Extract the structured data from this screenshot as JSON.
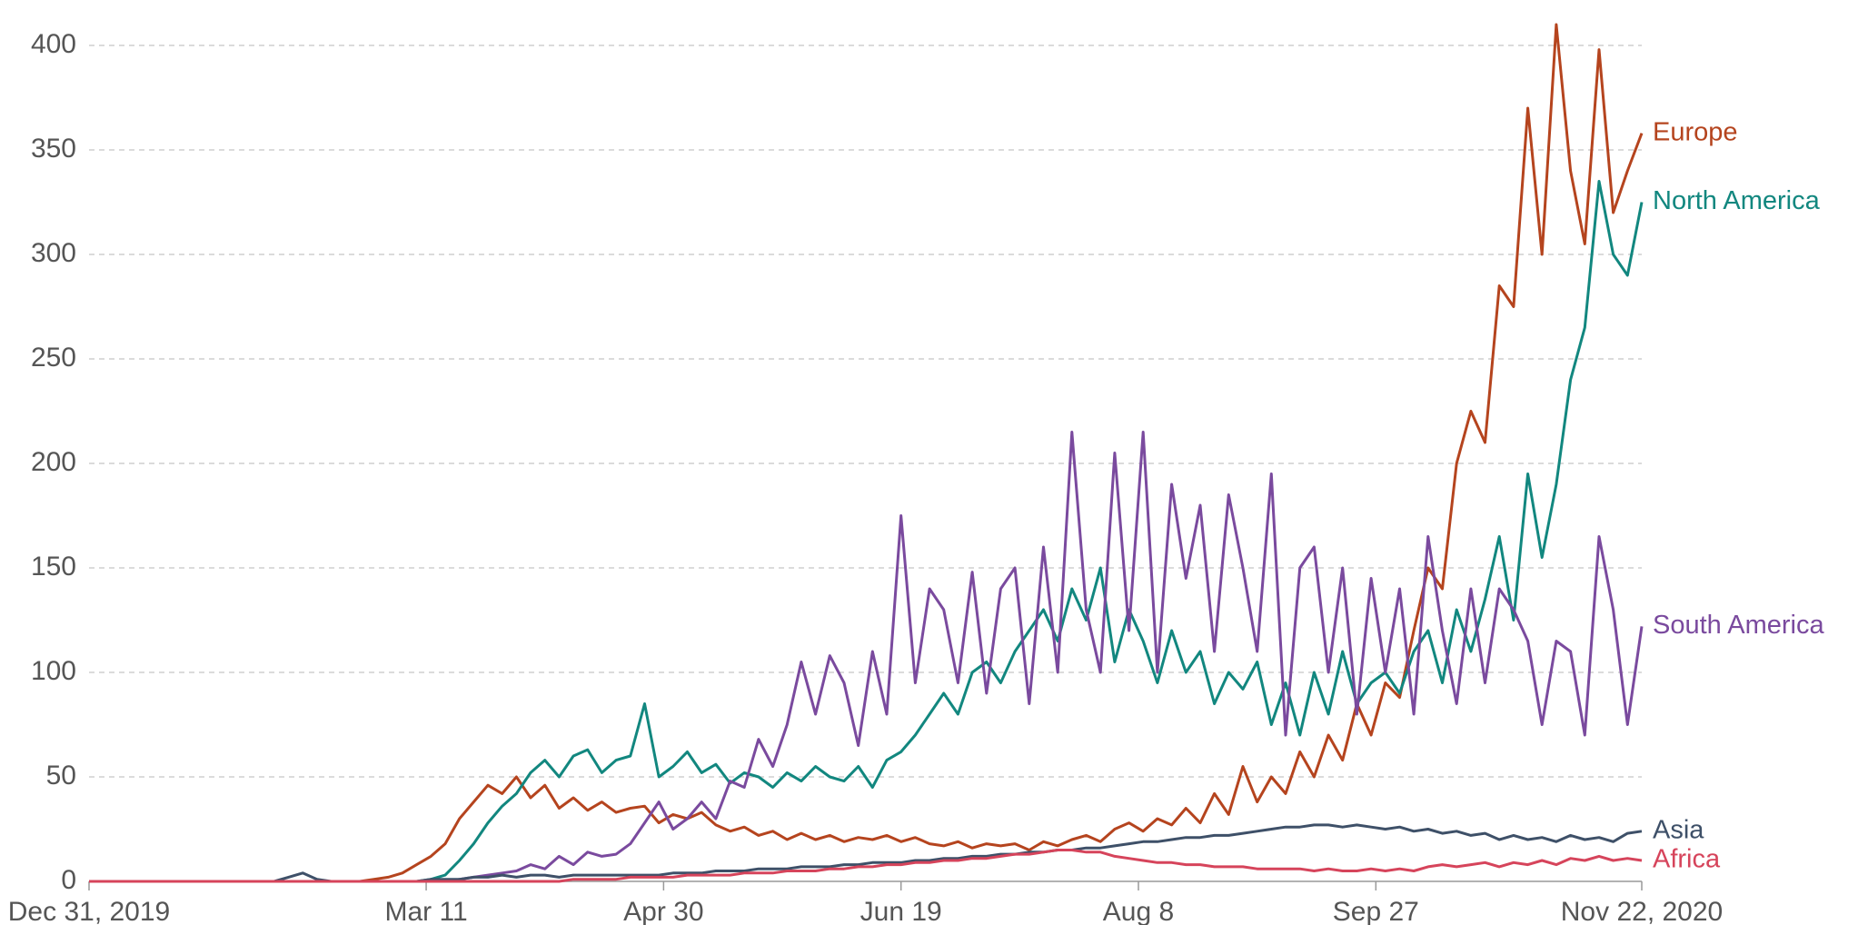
{
  "chart_data": {
    "type": "line",
    "x": [
      0,
      3,
      6,
      9,
      12,
      15,
      18,
      21,
      24,
      27,
      30,
      33,
      36,
      39,
      42,
      45,
      48,
      51,
      54,
      57,
      60,
      63,
      66,
      69,
      72,
      75,
      78,
      81,
      84,
      87,
      90,
      93,
      96,
      99,
      102,
      105,
      108,
      111,
      114,
      117,
      120,
      123,
      126,
      129,
      132,
      135,
      138,
      141,
      144,
      147,
      150,
      153,
      156,
      159,
      162,
      165,
      168,
      171,
      174,
      177,
      180,
      183,
      186,
      189,
      192,
      195,
      198,
      201,
      204,
      207,
      210,
      213,
      216,
      219,
      222,
      225,
      228,
      231,
      234,
      237,
      240,
      243,
      246,
      249,
      252,
      255,
      258,
      261,
      264,
      267,
      270,
      273,
      276,
      279,
      282,
      285,
      288,
      291,
      294,
      297,
      300,
      303,
      306,
      309,
      312,
      315,
      318,
      321,
      324,
      327
    ],
    "xlim": [
      0,
      327
    ],
    "xticks": [
      {
        "value": 0,
        "label": "Dec 31, 2019"
      },
      {
        "value": 71,
        "label": "Mar 11"
      },
      {
        "value": 121,
        "label": "Apr 30"
      },
      {
        "value": 171,
        "label": "Jun 19"
      },
      {
        "value": 221,
        "label": "Aug 8"
      },
      {
        "value": 271,
        "label": "Sep 27"
      },
      {
        "value": 327,
        "label": "Nov 22, 2020"
      }
    ],
    "ylim": [
      0,
      420
    ],
    "yticks": [
      0,
      50,
      100,
      150,
      200,
      250,
      300,
      350,
      400
    ],
    "grid": true,
    "series": [
      {
        "name": "Europe",
        "color": "#b5441e",
        "values": [
          0,
          0,
          0,
          0,
          0,
          0,
          0,
          0,
          0,
          0,
          0,
          0,
          0,
          0,
          0,
          0,
          0,
          0,
          0,
          0,
          1,
          2,
          4,
          8,
          12,
          18,
          30,
          38,
          46,
          42,
          50,
          40,
          46,
          35,
          40,
          34,
          38,
          33,
          35,
          36,
          28,
          32,
          30,
          33,
          27,
          24,
          26,
          22,
          24,
          20,
          23,
          20,
          22,
          19,
          21,
          20,
          22,
          19,
          21,
          18,
          17,
          19,
          16,
          18,
          17,
          18,
          15,
          19,
          17,
          20,
          22,
          19,
          25,
          28,
          24,
          30,
          27,
          35,
          28,
          42,
          32,
          55,
          38,
          50,
          42,
          62,
          50,
          70,
          58,
          85,
          70,
          95,
          88,
          120,
          150,
          140,
          200,
          225,
          210,
          285,
          275,
          370,
          300,
          410,
          340,
          305,
          398,
          320,
          340,
          358
        ]
      },
      {
        "name": "North America",
        "color": "#12877f",
        "values": [
          0,
          0,
          0,
          0,
          0,
          0,
          0,
          0,
          0,
          0,
          0,
          0,
          0,
          0,
          0,
          0,
          0,
          0,
          0,
          0,
          0,
          0,
          0,
          0,
          1,
          3,
          10,
          18,
          28,
          36,
          42,
          52,
          58,
          50,
          60,
          63,
          52,
          58,
          60,
          85,
          50,
          55,
          62,
          52,
          56,
          47,
          52,
          50,
          45,
          52,
          48,
          55,
          50,
          48,
          55,
          45,
          58,
          62,
          70,
          80,
          90,
          80,
          100,
          105,
          95,
          110,
          120,
          130,
          115,
          140,
          125,
          150,
          105,
          130,
          115,
          95,
          120,
          100,
          110,
          85,
          100,
          92,
          105,
          75,
          95,
          70,
          100,
          80,
          110,
          85,
          95,
          100,
          90,
          110,
          120,
          95,
          130,
          110,
          135,
          165,
          125,
          195,
          155,
          190,
          240,
          265,
          335,
          300,
          290,
          325
        ]
      },
      {
        "name": "South America",
        "color": "#7a4a9e",
        "values": [
          0,
          0,
          0,
          0,
          0,
          0,
          0,
          0,
          0,
          0,
          0,
          0,
          0,
          0,
          0,
          0,
          0,
          0,
          0,
          0,
          0,
          0,
          0,
          0,
          0,
          0,
          1,
          2,
          3,
          4,
          5,
          8,
          6,
          12,
          8,
          14,
          12,
          13,
          18,
          28,
          38,
          25,
          30,
          38,
          30,
          48,
          45,
          68,
          55,
          75,
          105,
          80,
          108,
          95,
          65,
          110,
          80,
          175,
          95,
          140,
          130,
          95,
          148,
          90,
          140,
          150,
          85,
          160,
          100,
          215,
          130,
          100,
          205,
          120,
          215,
          100,
          190,
          145,
          180,
          110,
          185,
          150,
          110,
          195,
          70,
          150,
          160,
          100,
          150,
          80,
          145,
          100,
          140,
          80,
          165,
          120,
          85,
          140,
          95,
          140,
          130,
          115,
          75,
          115,
          110,
          70,
          165,
          130,
          75,
          122
        ]
      },
      {
        "name": "Asia",
        "color": "#3e5068",
        "values": [
          0,
          0,
          0,
          0,
          0,
          0,
          0,
          0,
          0,
          0,
          0,
          0,
          0,
          0,
          2,
          4,
          1,
          0,
          0,
          0,
          0,
          0,
          0,
          0,
          1,
          1,
          1,
          2,
          2,
          3,
          2,
          3,
          3,
          2,
          3,
          3,
          3,
          3,
          3,
          3,
          3,
          4,
          4,
          4,
          5,
          5,
          5,
          6,
          6,
          6,
          7,
          7,
          7,
          8,
          8,
          9,
          9,
          9,
          10,
          10,
          11,
          11,
          12,
          12,
          13,
          13,
          14,
          14,
          15,
          15,
          16,
          16,
          17,
          18,
          19,
          19,
          20,
          21,
          21,
          22,
          22,
          23,
          24,
          25,
          26,
          26,
          27,
          27,
          26,
          27,
          26,
          25,
          26,
          24,
          25,
          23,
          24,
          22,
          23,
          20,
          22,
          20,
          21,
          19,
          22,
          20,
          21,
          19,
          23,
          24
        ]
      },
      {
        "name": "Africa",
        "color": "#d6445b",
        "values": [
          0,
          0,
          0,
          0,
          0,
          0,
          0,
          0,
          0,
          0,
          0,
          0,
          0,
          0,
          0,
          0,
          0,
          0,
          0,
          0,
          0,
          0,
          0,
          0,
          0,
          0,
          0,
          0,
          0,
          0,
          0,
          0,
          0,
          0,
          1,
          1,
          1,
          1,
          2,
          2,
          2,
          2,
          3,
          3,
          3,
          3,
          4,
          4,
          4,
          5,
          5,
          5,
          6,
          6,
          7,
          7,
          8,
          8,
          9,
          9,
          10,
          10,
          11,
          11,
          12,
          13,
          13,
          14,
          15,
          15,
          14,
          14,
          12,
          11,
          10,
          9,
          9,
          8,
          8,
          7,
          7,
          7,
          6,
          6,
          6,
          6,
          5,
          6,
          5,
          5,
          6,
          5,
          6,
          5,
          7,
          8,
          7,
          8,
          9,
          7,
          9,
          8,
          10,
          8,
          11,
          10,
          12,
          10,
          11,
          10
        ]
      }
    ]
  }
}
